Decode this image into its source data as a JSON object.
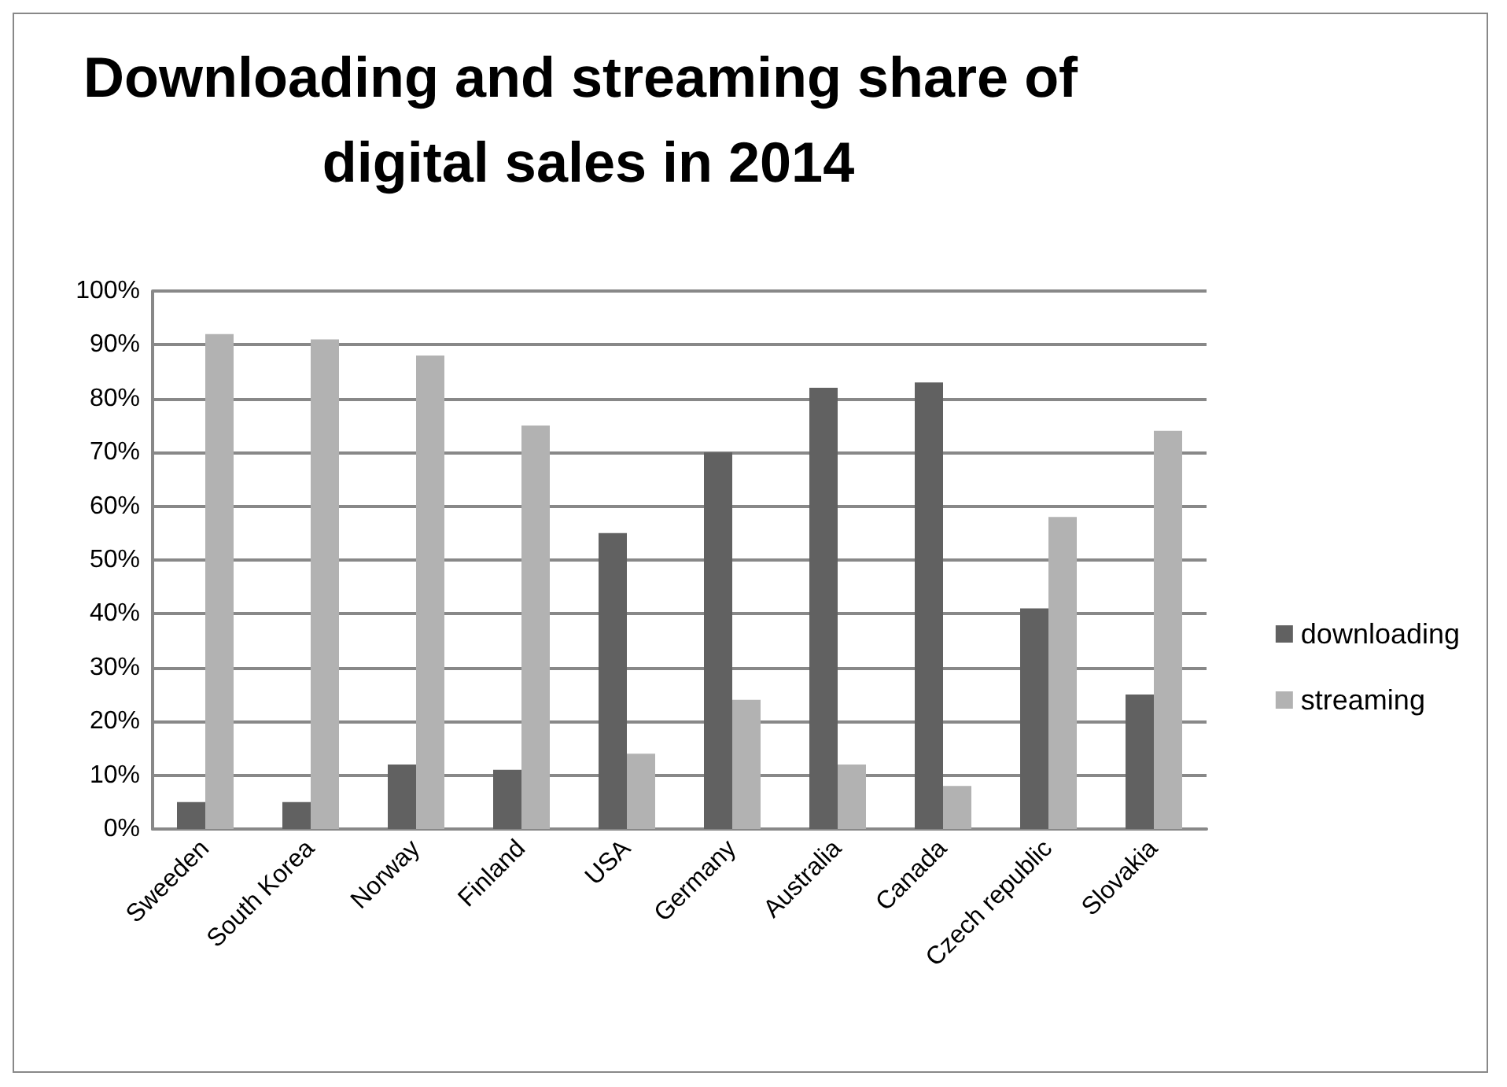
{
  "chart_data": {
    "type": "bar",
    "title": "Downloading and streaming share of digital sales in 2014",
    "categories": [
      "Sweeden",
      "South Korea",
      "Norway",
      "Finland",
      "USA",
      "Germany",
      "Australia",
      "Canada",
      "Czech republic",
      "Slovakia"
    ],
    "series": [
      {
        "name": "downloading",
        "color": "#616161",
        "values": [
          5,
          5,
          12,
          11,
          55,
          70,
          82,
          83,
          41,
          25
        ]
      },
      {
        "name": "streaming",
        "color": "#b2b2b2",
        "values": [
          92,
          91,
          88,
          75,
          14,
          24,
          12,
          8,
          58,
          74
        ]
      }
    ],
    "ylim": [
      0,
      100
    ],
    "yticks": [
      {
        "value": 0,
        "label": "0%"
      },
      {
        "value": 10,
        "label": "10%"
      },
      {
        "value": 20,
        "label": "20%"
      },
      {
        "value": 30,
        "label": "30%"
      },
      {
        "value": 40,
        "label": "40%"
      },
      {
        "value": 50,
        "label": "50%"
      },
      {
        "value": 60,
        "label": "60%"
      },
      {
        "value": 70,
        "label": "70%"
      },
      {
        "value": 80,
        "label": "80%"
      },
      {
        "value": 90,
        "label": "90%"
      },
      {
        "value": 100,
        "label": "100%"
      }
    ],
    "grid": "y",
    "legend": "right"
  }
}
